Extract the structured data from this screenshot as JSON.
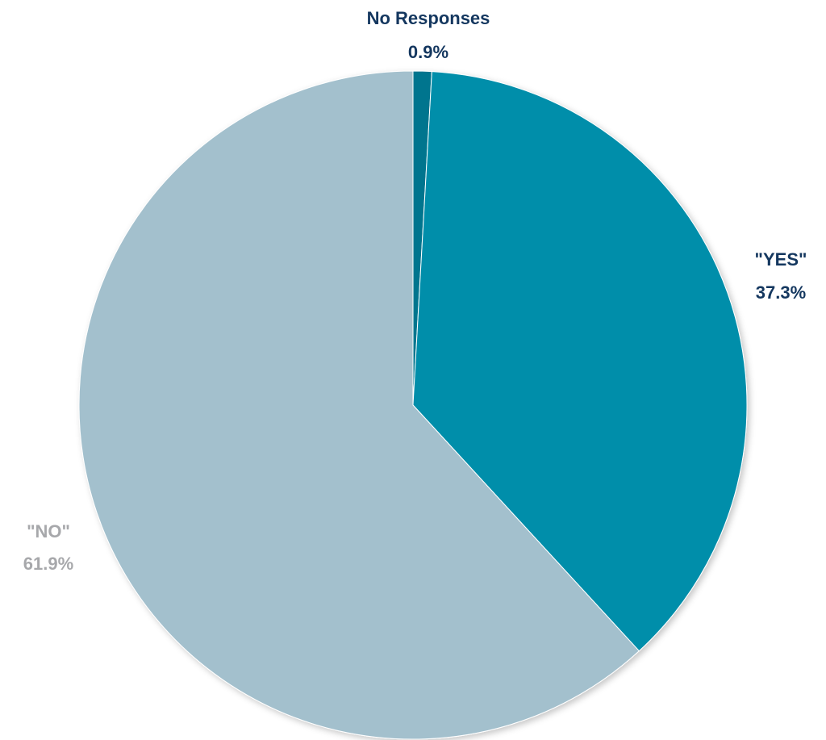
{
  "chart_data": {
    "type": "pie",
    "start_angle_deg": 0,
    "direction": "clockwise",
    "slices": [
      {
        "label": "No Responses",
        "value": 0.9,
        "value_label": "0.9%",
        "color": "#06758E",
        "label_color": "#14375F"
      },
      {
        "label": "\"YES\"",
        "value": 37.3,
        "value_label": "37.3%",
        "color": "#008EAA",
        "label_color": "#14375F"
      },
      {
        "label": "\"NO\"",
        "value": 61.9,
        "value_label": "61.9%",
        "color": "#A3C0CD",
        "label_color": "#A7A8AB"
      }
    ]
  }
}
